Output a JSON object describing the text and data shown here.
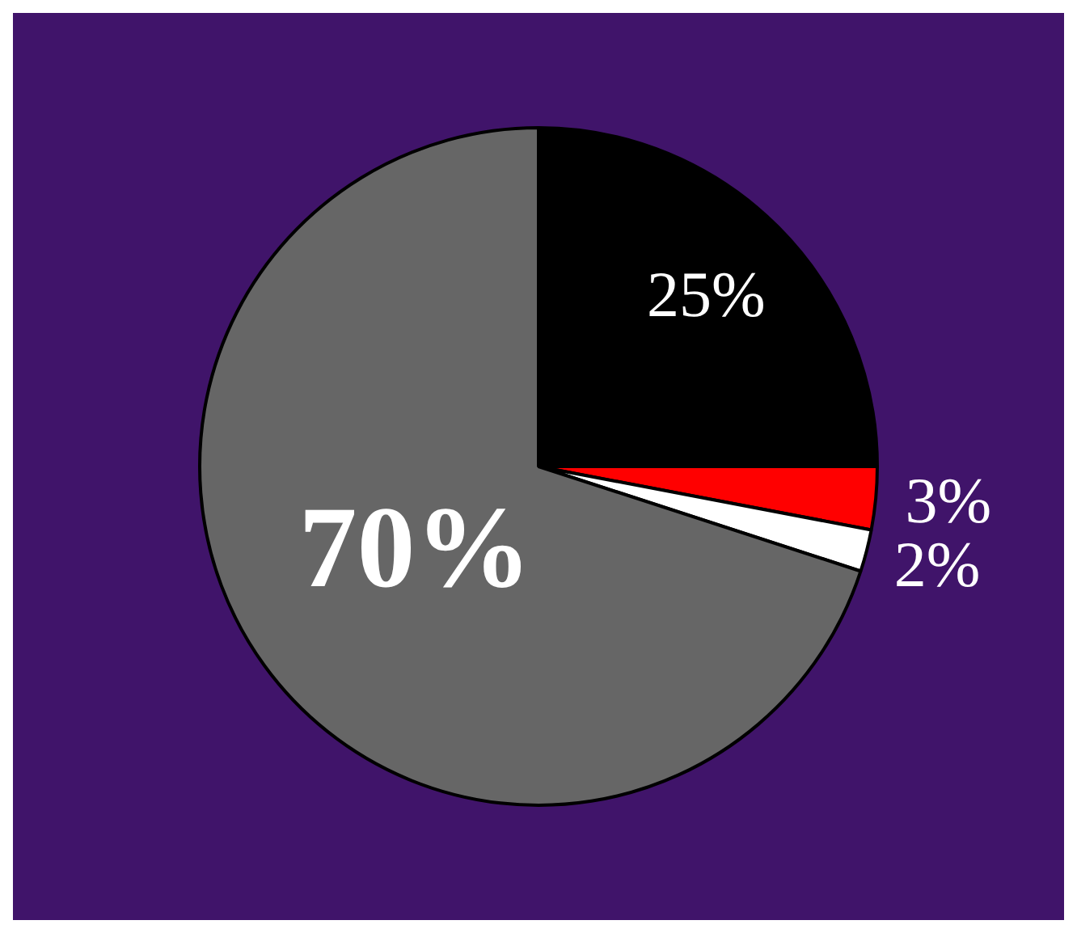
{
  "chart_data": {
    "type": "pie",
    "categories": [
      null,
      null,
      null,
      null
    ],
    "values": [
      25,
      3,
      2,
      70
    ],
    "colors": [
      "#000000",
      "#ff0000",
      "#ffffff",
      "#666666"
    ],
    "value_labels": [
      "25%",
      "3%",
      "2%",
      "70%"
    ],
    "legend": false
  }
}
